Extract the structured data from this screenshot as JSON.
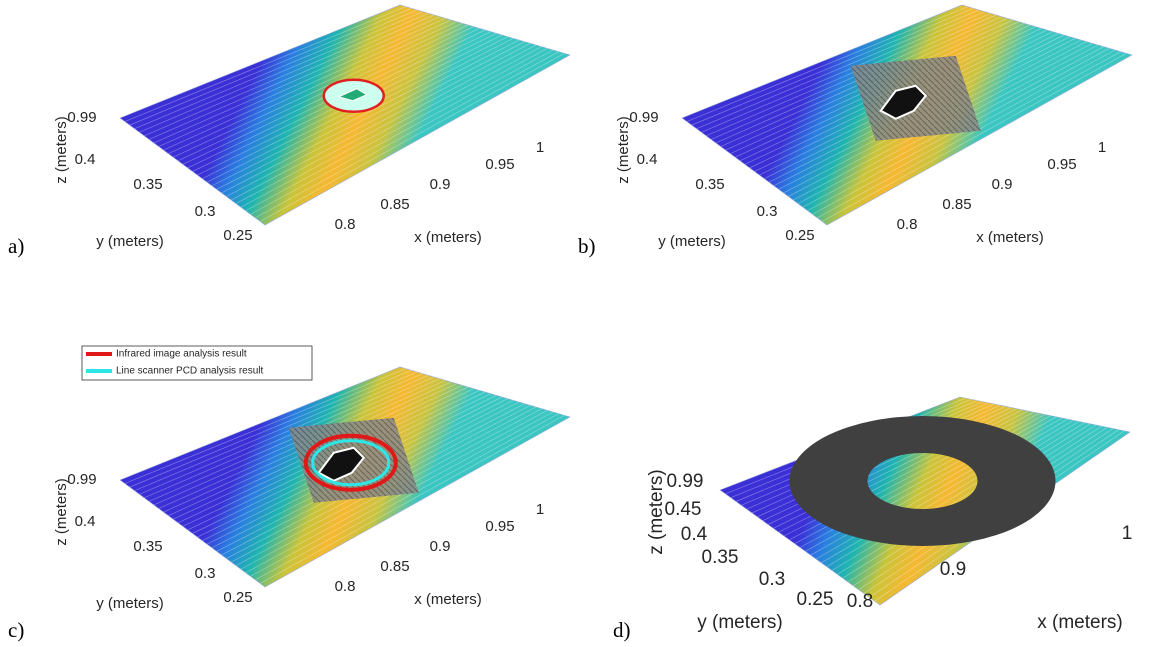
{
  "panels": [
    {
      "label": "a)",
      "z_label": "z (meters)",
      "y_label": "y (meters)",
      "x_label": "x (meters)",
      "z_ticks": [
        0.99
      ],
      "y_ticks": [
        0.4,
        0.35,
        0.3,
        0.25
      ],
      "x_ticks": [
        0.8,
        0.85,
        0.9,
        0.95,
        1
      ]
    },
    {
      "label": "b)",
      "z_label": "z (meters)",
      "y_label": "y (meters)",
      "x_label": "x (meters)",
      "z_ticks": [
        0.99
      ],
      "y_ticks": [
        0.4,
        0.35,
        0.3,
        0.25
      ],
      "x_ticks": [
        0.8,
        0.85,
        0.9,
        0.95,
        1
      ]
    },
    {
      "label": "c)",
      "z_label": "z (meters)",
      "y_label": "y (meters)",
      "x_label": "x (meters)",
      "z_ticks": [
        0.99
      ],
      "y_ticks": [
        0.4,
        0.35,
        0.3,
        0.25
      ],
      "x_ticks": [
        0.8,
        0.85,
        0.9,
        0.95,
        1
      ],
      "legend": [
        "Infrared image analysis result",
        "Line scanner PCD analysis result"
      ]
    },
    {
      "label": "d)",
      "z_label": "z (meters)",
      "y_label": "y (meters)",
      "x_label": "x (meters)",
      "z_ticks": [
        0.99,
        0.45
      ],
      "y_ticks": [
        0.4,
        0.35,
        0.3,
        0.25
      ],
      "x_ticks": [
        0.8,
        0.9,
        1
      ]
    }
  ]
}
